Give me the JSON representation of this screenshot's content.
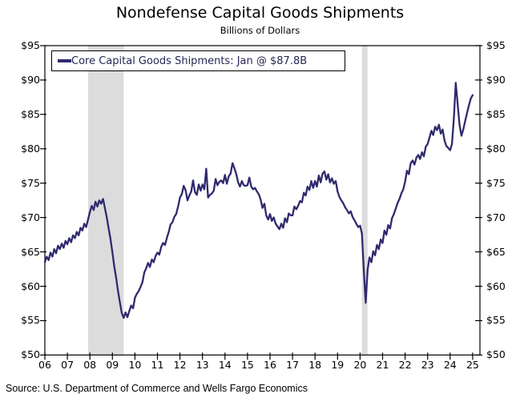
{
  "header": {
    "title": "Nondefense Capital Goods Shipments",
    "subtitle": "Billions of Dollars"
  },
  "legend": {
    "label": "Core Capital Goods Shipments: Jan @ $87.8B"
  },
  "source": {
    "text": "Source: U.S. Department of Commerce and Wells Fargo Economics"
  },
  "colors": {
    "series": "#2f2a6e",
    "recession_band": "#dcdcdc",
    "axis": "#000000",
    "legend_text": "#262653"
  },
  "chart_data": {
    "type": "line",
    "title": "Nondefense Capital Goods Shipments",
    "subtitle": "Billions of Dollars",
    "unit": "billions of dollars, monthly",
    "grid": false,
    "legend_position": "top-left",
    "ylim": [
      50,
      95
    ],
    "y_ticks": [
      50,
      55,
      60,
      65,
      70,
      75,
      80,
      85,
      90,
      95
    ],
    "y_tick_labels": [
      "$50",
      "$55",
      "$60",
      "$65",
      "$70",
      "$75",
      "$80",
      "$85",
      "$90",
      "$95"
    ],
    "x_tick_labels": [
      "06",
      "07",
      "08",
      "09",
      "10",
      "11",
      "12",
      "13",
      "14",
      "15",
      "16",
      "17",
      "18",
      "19",
      "20",
      "21",
      "22",
      "23",
      "24",
      "25"
    ],
    "recession_bands": [
      {
        "start": "2007-12",
        "end": "2009-06"
      },
      {
        "start": "2020-02",
        "end": "2020-04"
      }
    ],
    "series": [
      {
        "name": "Core Capital Goods Shipments",
        "latest_point_label": "Jan @ $87.8B",
        "latest_value": 87.8,
        "start": "2006-01",
        "frequency": "monthly",
        "values": [
          63.5,
          64.3,
          63.8,
          64.9,
          64.3,
          65.4,
          64.8,
          65.9,
          65.4,
          66.2,
          65.6,
          66.6,
          66.1,
          67.0,
          66.4,
          67.4,
          67.0,
          67.9,
          67.4,
          68.5,
          68.1,
          69.1,
          68.6,
          69.7,
          70.8,
          71.7,
          71.1,
          72.3,
          71.6,
          72.5,
          72.0,
          72.7,
          71.4,
          70.0,
          68.4,
          66.8,
          64.9,
          62.9,
          61.2,
          59.3,
          57.6,
          56.1,
          55.4,
          56.2,
          55.5,
          56.4,
          57.2,
          56.8,
          58.3,
          58.9,
          59.3,
          59.9,
          60.6,
          62.0,
          62.6,
          63.4,
          62.8,
          63.9,
          63.5,
          64.4,
          64.9,
          64.6,
          65.7,
          66.3,
          66.0,
          67.0,
          67.9,
          69.0,
          69.3,
          70.1,
          70.5,
          71.6,
          72.9,
          73.4,
          74.6,
          74.0,
          72.5,
          73.2,
          73.8,
          75.4,
          73.7,
          73.3,
          74.8,
          73.9,
          74.8,
          74.1,
          77.1,
          72.9,
          73.3,
          73.5,
          73.9,
          75.6,
          74.7,
          75.2,
          75.4,
          75.0,
          76.2,
          74.9,
          76.0,
          76.4,
          77.9,
          77.2,
          76.3,
          75.1,
          74.5,
          75.3,
          74.7,
          74.6,
          74.7,
          75.8,
          74.5,
          74.1,
          74.3,
          73.8,
          73.4,
          72.6,
          71.4,
          72.0,
          70.3,
          69.7,
          70.5,
          69.5,
          70.0,
          69.1,
          68.7,
          68.3,
          69.1,
          68.5,
          69.9,
          69.3,
          70.6,
          70.3,
          70.3,
          71.6,
          71.2,
          71.7,
          72.4,
          72.2,
          73.6,
          73.2,
          74.5,
          74.0,
          75.3,
          74.3,
          75.3,
          74.5,
          76.1,
          75.1,
          76.4,
          76.7,
          75.5,
          76.3,
          75.1,
          75.7,
          74.9,
          75.3,
          73.8,
          73.0,
          72.5,
          72.1,
          71.5,
          71.1,
          70.6,
          70.9,
          70.1,
          69.6,
          69.1,
          68.6,
          68.8,
          67.7,
          62.2,
          57.6,
          62.4,
          64.2,
          63.5,
          65.1,
          64.5,
          66.0,
          65.4,
          66.8,
          66.3,
          68.1,
          67.5,
          68.9,
          68.4,
          69.9,
          70.5,
          71.3,
          72.1,
          72.7,
          73.5,
          74.1,
          75.2,
          76.8,
          76.3,
          77.9,
          78.3,
          77.7,
          78.7,
          79.1,
          78.5,
          79.5,
          78.9,
          80.3,
          80.7,
          81.6,
          82.6,
          82.0,
          83.2,
          82.7,
          83.5,
          82.2,
          82.8,
          81.2,
          80.4,
          80.1,
          79.8,
          80.7,
          84.5,
          89.6,
          86.5,
          83.5,
          81.9,
          82.8,
          84.0,
          85.2,
          86.3,
          87.3,
          87.8
        ]
      }
    ]
  }
}
